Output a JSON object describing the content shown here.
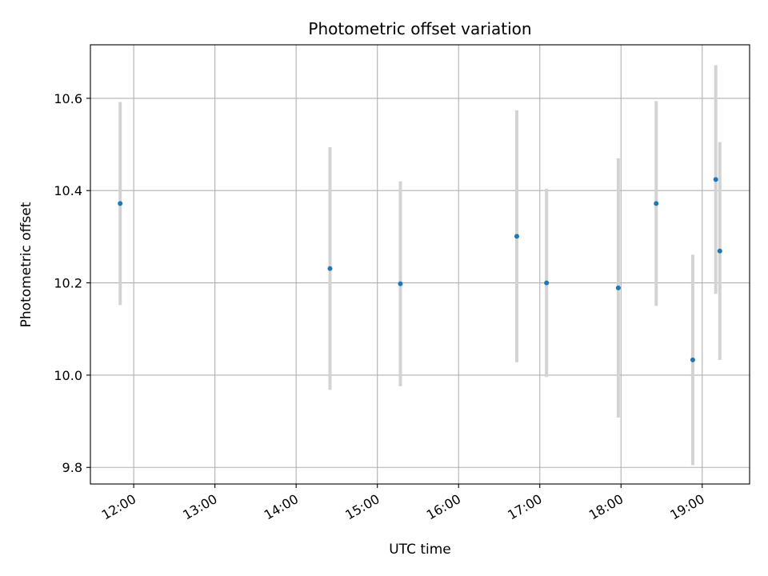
{
  "chart_data": {
    "type": "scatter",
    "title": "Photometric offset variation",
    "xlabel": "UTC time",
    "ylabel": "Photometric offset",
    "x_unit": "hours UTC",
    "xlim": [
      "11:28",
      "19:35"
    ],
    "ylim": [
      9.764,
      10.716
    ],
    "x_ticks": [
      "12:00",
      "13:00",
      "14:00",
      "15:00",
      "16:00",
      "17:00",
      "18:00",
      "19:00"
    ],
    "y_ticks": [
      9.8,
      10.0,
      10.2,
      10.4,
      10.6
    ],
    "grid": true,
    "legend": "none",
    "marker_color": "#1f77b4",
    "errorbar_color": "#d3d3d3",
    "points": [
      {
        "x": "11:50",
        "y": 10.372,
        "err": 0.22
      },
      {
        "x": "14:25",
        "y": 10.231,
        "err": 0.263
      },
      {
        "x": "15:17",
        "y": 10.198,
        "err": 0.222
      },
      {
        "x": "16:43",
        "y": 10.301,
        "err": 0.273
      },
      {
        "x": "17:05",
        "y": 10.2,
        "err": 0.204
      },
      {
        "x": "17:58",
        "y": 10.189,
        "err": 0.281
      },
      {
        "x": "18:26",
        "y": 10.372,
        "err": 0.222
      },
      {
        "x": "18:53",
        "y": 10.033,
        "err": 0.228
      },
      {
        "x": "19:10",
        "y": 10.424,
        "err": 0.248
      },
      {
        "x": "19:13",
        "y": 10.269,
        "err": 0.236
      }
    ]
  }
}
